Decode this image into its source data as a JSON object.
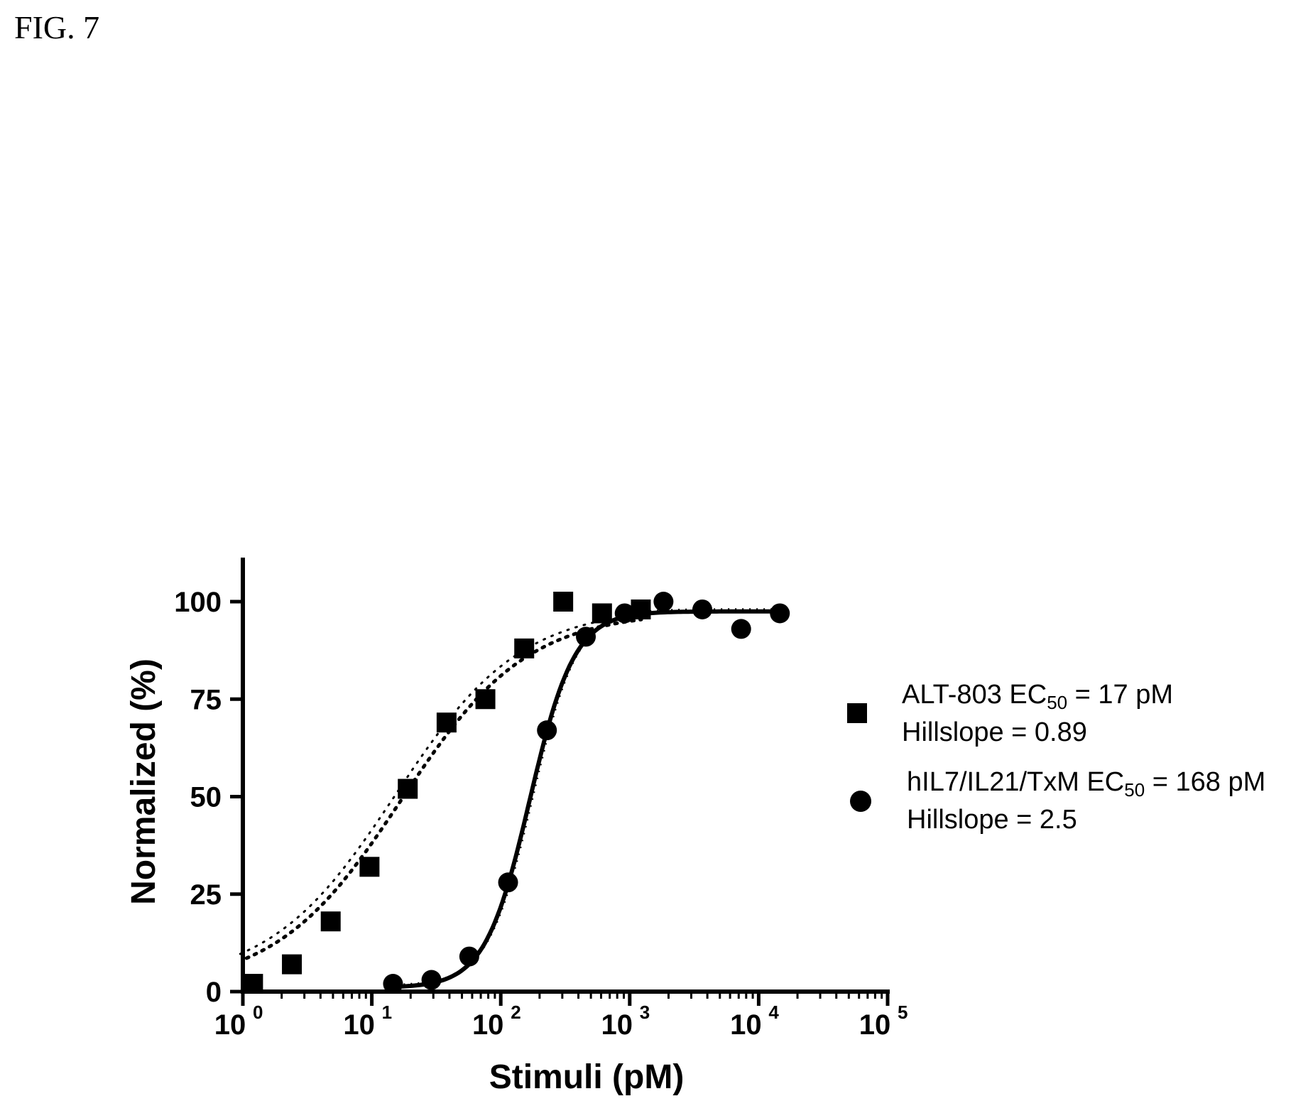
{
  "figure_label": "FIG. 7",
  "chart_data": {
    "type": "scatter",
    "x_scale": "log10",
    "xlim": [
      1,
      100000
    ],
    "ylim": [
      0,
      110
    ],
    "x_ticks": [
      {
        "value": 1,
        "base": "10",
        "exp": "0"
      },
      {
        "value": 10,
        "base": "10",
        "exp": "1"
      },
      {
        "value": 100,
        "base": "10",
        "exp": "2"
      },
      {
        "value": 1000,
        "base": "10",
        "exp": "3"
      },
      {
        "value": 10000,
        "base": "10",
        "exp": "4"
      },
      {
        "value": 100000,
        "base": "10",
        "exp": "5"
      }
    ],
    "y_ticks": [
      0,
      25,
      50,
      75,
      100
    ],
    "y_tick_labels": [
      "0",
      "25",
      "50",
      "75",
      "100"
    ],
    "xlabel": "Stimuli (pM)",
    "ylabel": "Normalized (%)",
    "legend_position": "right",
    "series": [
      {
        "marker": "square",
        "legend_name": "ALT-803 EC",
        "legend_sub": "50",
        "legend_value": " = 17 pM",
        "legend_hill": "Hillslope = 0.89",
        "ec50": 17,
        "hillslope": 0.89,
        "fit_style": "dotted",
        "x": [
          1.2,
          2.4,
          4.8,
          9.6,
          19,
          38,
          76,
          152,
          305,
          610,
          1220
        ],
        "y": [
          2,
          7,
          18,
          32,
          52,
          69,
          75,
          88,
          100,
          97,
          98
        ]
      },
      {
        "marker": "circle",
        "legend_name": "hIL7/IL21/TxM EC",
        "legend_sub": "50",
        "legend_value": " = 168 pM",
        "legend_hill": "Hillslope = 2.5",
        "ec50": 168,
        "hillslope": 2.5,
        "fit_style": "solid",
        "x": [
          14.6,
          29,
          57,
          114,
          228,
          457,
          914,
          1828,
          3656,
          7312,
          14600
        ],
        "y": [
          2,
          3,
          9,
          28,
          67,
          91,
          97,
          100,
          98,
          93,
          97
        ]
      }
    ]
  }
}
